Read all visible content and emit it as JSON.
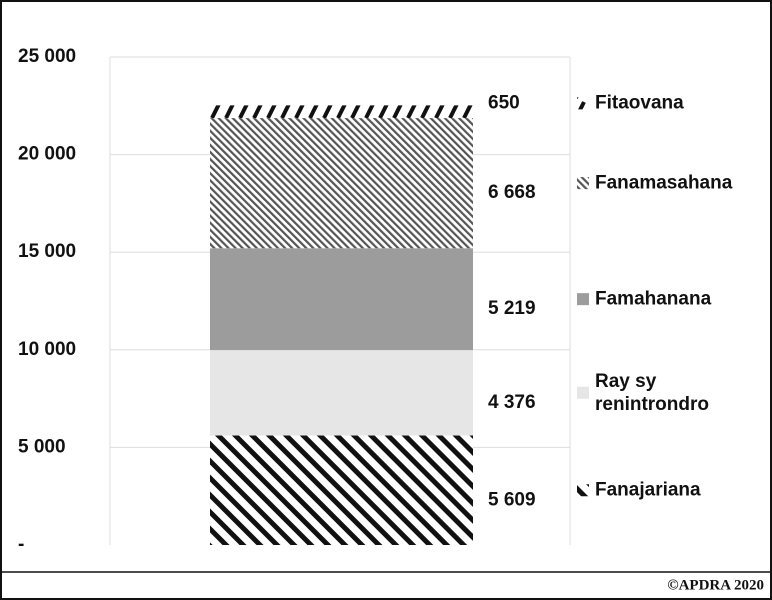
{
  "chart_data": {
    "type": "stacked_bar",
    "categories": [
      null
    ],
    "series": [
      {
        "name": "Fanajariana",
        "color": "#111111",
        "pattern": "hatch-thick",
        "values": [
          5609
        ],
        "value_labels": [
          "5 609"
        ]
      },
      {
        "name": "Ray sy renintrondro",
        "color": "#e6e6e6",
        "pattern": "solid",
        "values": [
          4376
        ],
        "value_labels": [
          "4 376"
        ]
      },
      {
        "name": "Famahanana",
        "color": "#9c9c9c",
        "pattern": "solid",
        "values": [
          5219
        ],
        "value_labels": [
          "5 219"
        ]
      },
      {
        "name": "Fanamasahana",
        "color": "#555555",
        "pattern": "hatch-fine",
        "values": [
          6668
        ],
        "value_labels": [
          "6 668"
        ]
      },
      {
        "name": "Fitaovana",
        "color": "#111111",
        "pattern": "dashes",
        "values": [
          650
        ],
        "value_labels": [
          "650"
        ]
      }
    ],
    "ylim": [
      0,
      25000
    ],
    "yticks": [
      {
        "value": 0,
        "label": "-"
      },
      {
        "value": 5000,
        "label": "5 000"
      },
      {
        "value": 10000,
        "label": "10 000"
      },
      {
        "value": 15000,
        "label": "15 000"
      },
      {
        "value": 20000,
        "label": "20 000"
      },
      {
        "value": 25000,
        "label": "25 000"
      }
    ],
    "grid": true,
    "annotation": "©APDRA 2020"
  }
}
